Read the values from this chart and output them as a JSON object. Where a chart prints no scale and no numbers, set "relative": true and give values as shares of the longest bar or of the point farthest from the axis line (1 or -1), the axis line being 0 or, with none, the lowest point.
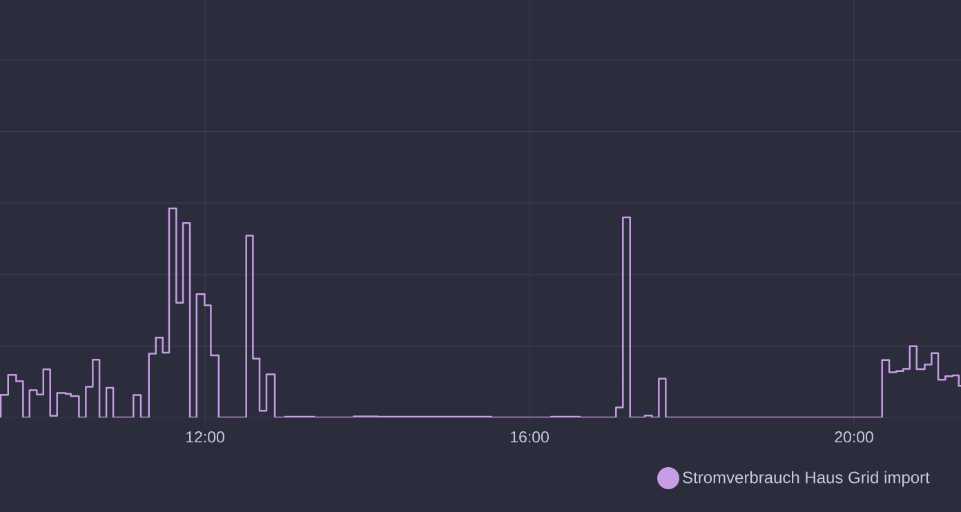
{
  "chart_data": {
    "type": "step",
    "relative": true,
    "x": [
      9.472,
      9.481,
      9.572,
      9.671,
      9.756,
      9.836,
      9.926,
      10.006,
      10.091,
      10.176,
      10.281,
      10.346,
      10.445,
      10.53,
      10.615,
      10.698,
      10.783,
      10.868,
      11.117,
      11.208,
      11.308,
      11.393,
      11.478,
      11.557,
      11.645,
      11.728,
      11.813,
      11.895,
      11.994,
      12.071,
      12.168,
      12.508,
      12.59,
      12.672,
      12.757,
      12.86,
      12.987,
      13.345,
      13.83,
      14.128,
      15.532,
      16.264,
      16.621,
      17.066,
      17.151,
      17.24,
      17.421,
      17.509,
      17.594,
      17.679,
      20.346,
      20.434,
      20.522,
      20.607,
      20.687,
      20.772,
      20.871,
      20.956,
      21.038,
      21.126,
      21.217,
      21.291,
      21.319
    ],
    "xlim": [
      9.472,
      21.319
    ],
    "xticks": [
      {
        "value": 12,
        "label": "12:00"
      },
      {
        "value": 16,
        "label": "16:00"
      },
      {
        "value": 20,
        "label": "20:00"
      }
    ],
    "grid": true,
    "legend": "bottom right",
    "series": [
      {
        "name": "Stromverbrauch Haus Grid import",
        "color": "#c99ce6",
        "values": [
          0,
          0.108,
          0.204,
          0.173,
          0,
          0.13,
          0.11,
          0.23,
          0.008,
          0.117,
          0.113,
          0.102,
          0,
          0.147,
          0.276,
          0,
          0.142,
          0,
          0.107,
          0,
          0.305,
          0.382,
          0.31,
          1.0,
          0.549,
          0.93,
          0,
          0.59,
          0.536,
          0.297,
          0,
          0.87,
          0.281,
          0.032,
          0.206,
          0,
          0.003,
          0,
          0.005,
          0.003,
          0,
          0.003,
          0,
          0.048,
          0.957,
          0,
          0.009,
          0,
          0.186,
          0,
          0.275,
          0.216,
          0.222,
          0.233,
          0.341,
          0.231,
          0.253,
          0.308,
          0.181,
          0.197,
          0.201,
          0.151,
          0.151
        ]
      }
    ]
  }
}
